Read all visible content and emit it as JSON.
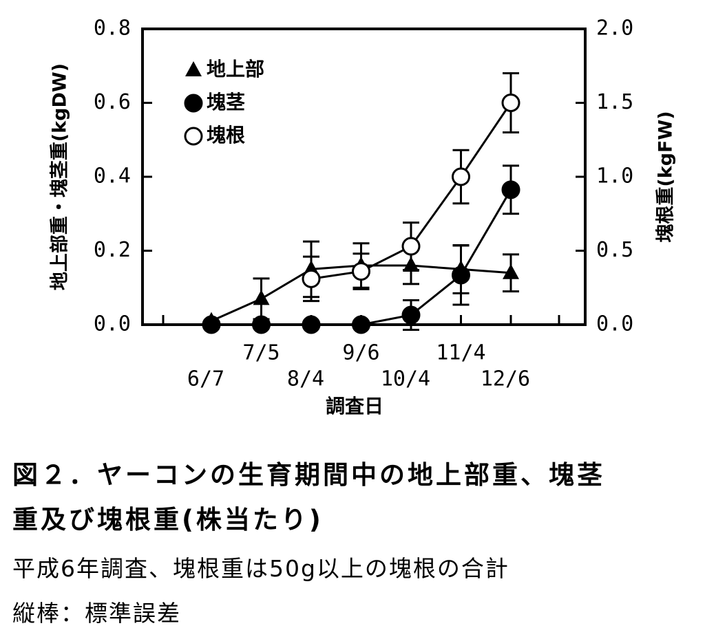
{
  "chart_data": {
    "type": "line",
    "categories": [
      "6/7",
      "7/5",
      "8/4",
      "9/6",
      "10/4",
      "11/4",
      "12/6"
    ],
    "xlabel": "調査日",
    "ylabel": "地上部重・塊茎重(kgDW)",
    "y2label": "塊根重(kgFW)",
    "ylim": [
      0,
      0.8
    ],
    "yticks": [
      {
        "value": 0,
        "label": "0.0"
      },
      {
        "value": 0.2,
        "label": "0.2"
      },
      {
        "value": 0.4,
        "label": "0.4"
      },
      {
        "value": 0.6,
        "label": "0.6"
      },
      {
        "value": 0.8,
        "label": "0.8"
      }
    ],
    "y2lim": [
      0,
      2.0
    ],
    "y2ticks": [
      {
        "value": 0,
        "label": "0.0"
      },
      {
        "value": 0.5,
        "label": "0.5"
      },
      {
        "value": 1.0,
        "label": "1.0"
      },
      {
        "value": 1.5,
        "label": "1.5"
      },
      {
        "value": 2.0,
        "label": "2.0"
      }
    ],
    "series": [
      {
        "name": "地上部",
        "marker": "triangle",
        "color": "#000",
        "values": [
          0.01,
          0.07,
          0.15,
          0.16,
          0.16,
          0.15,
          0.14
        ],
        "errors": [
          0,
          0.055,
          0.075,
          0.06,
          0.05,
          0.065,
          0.05
        ]
      },
      {
        "name": "塊茎",
        "marker": "filled-circle",
        "color": "#000",
        "values": [
          0,
          0,
          0,
          0,
          0.026,
          0.134,
          0.365
        ],
        "errors": [
          0,
          0,
          0,
          0,
          0.04,
          0.08,
          0.065
        ]
      },
      {
        "name": "塊根",
        "marker": "open-circle",
        "color": "#000",
        "axis": "y2",
        "values": [
          null,
          null,
          0.31,
          0.36,
          0.53,
          1.0,
          1.5
        ],
        "errors": [
          null,
          null,
          0.15,
          0.12,
          0.16,
          0.18,
          0.2
        ]
      }
    ]
  },
  "caption": {
    "title_lines": [
      "図２．ヤーコンの生育期間中の地上部重、塊茎",
      "重及び塊根重(株当たり)"
    ],
    "notes": [
      "平成6年調査、塊根重は50g以上の塊根の合計",
      "縦棒：標準誤差"
    ]
  }
}
